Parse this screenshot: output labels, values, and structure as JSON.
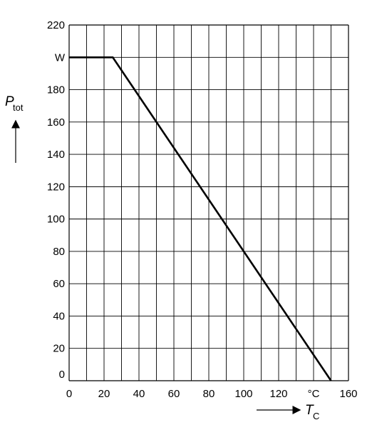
{
  "chart_data": {
    "type": "line",
    "title": "",
    "xlabel": {
      "symbol": "T",
      "subscript": "C"
    },
    "ylabel": {
      "symbol": "P",
      "subscript": "tot"
    },
    "xlim": [
      0,
      160
    ],
    "ylim": [
      0,
      220
    ],
    "grid": true,
    "x_ticks": [
      "0",
      "20",
      "40",
      "60",
      "80",
      "100",
      "120",
      "°C",
      "160"
    ],
    "y_ticks": [
      "0",
      "20",
      "40",
      "60",
      "80",
      "100",
      "120",
      "140",
      "160",
      "180",
      "W",
      "220"
    ],
    "series": [
      {
        "x": [
          0,
          25,
          150
        ],
        "y": [
          200,
          200,
          0
        ]
      }
    ],
    "colors": {
      "line": "#000000",
      "grid": "#000000"
    }
  }
}
